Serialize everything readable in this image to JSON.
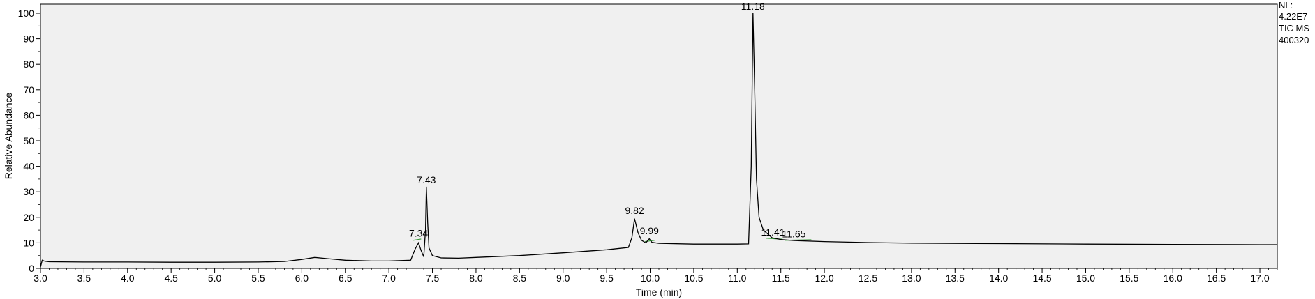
{
  "chart_data": {
    "type": "line",
    "title": "",
    "xlabel": "Time (min)",
    "ylabel": "Relative Abundance",
    "xlim": [
      3.0,
      17.2
    ],
    "ylim": [
      0,
      102
    ],
    "x_ticks": [
      "3.0",
      "3.5",
      "4.0",
      "4.5",
      "5.0",
      "5.5",
      "6.0",
      "6.5",
      "7.0",
      "7.5",
      "8.0",
      "8.5",
      "9.0",
      "9.5",
      "10.0",
      "10.5",
      "11.0",
      "11.5",
      "12.0",
      "12.5",
      "13.0",
      "13.5",
      "14.0",
      "14.5",
      "15.0",
      "15.5",
      "16.0",
      "16.5",
      "17.0"
    ],
    "y_ticks": [
      "0",
      "10",
      "20",
      "30",
      "40",
      "50",
      "60",
      "70",
      "80",
      "90",
      "100"
    ],
    "info": [
      "NL:",
      "4.22E7",
      "TIC  MS",
      "400320"
    ],
    "colors": {
      "trace": "#000000",
      "baseline": "#3a9a3a",
      "plot_bg": "#f0f0f0"
    },
    "peaks": [
      {
        "label": "7.34",
        "x": 7.34,
        "y": 11
      },
      {
        "label": "7.43",
        "x": 7.43,
        "y": 32
      },
      {
        "label": "9.82",
        "x": 9.82,
        "y": 20
      },
      {
        "label": "9.99",
        "x": 9.99,
        "y": 12
      },
      {
        "label": "11.18",
        "x": 11.18,
        "y": 100
      },
      {
        "label": "11.41",
        "x": 11.41,
        "y": 11.5
      },
      {
        "label": "11.65",
        "x": 11.65,
        "y": 10.8
      }
    ],
    "series": [
      {
        "points": [
          [
            3.0,
            0.5
          ],
          [
            3.02,
            3.2
          ],
          [
            3.05,
            2.8
          ],
          [
            3.1,
            2.6
          ],
          [
            3.5,
            2.5
          ],
          [
            4.0,
            2.5
          ],
          [
            4.5,
            2.4
          ],
          [
            5.0,
            2.4
          ],
          [
            5.5,
            2.5
          ],
          [
            5.8,
            2.7
          ],
          [
            6.0,
            3.5
          ],
          [
            6.15,
            4.3
          ],
          [
            6.3,
            3.8
          ],
          [
            6.5,
            3.2
          ],
          [
            6.8,
            2.9
          ],
          [
            7.0,
            2.9
          ],
          [
            7.25,
            3.2
          ],
          [
            7.3,
            7.5
          ],
          [
            7.34,
            10
          ],
          [
            7.37,
            7
          ],
          [
            7.4,
            4.5
          ],
          [
            7.42,
            15
          ],
          [
            7.43,
            32
          ],
          [
            7.445,
            18
          ],
          [
            7.46,
            8
          ],
          [
            7.5,
            5
          ],
          [
            7.6,
            4.1
          ],
          [
            7.8,
            4.0
          ],
          [
            8.0,
            4.3
          ],
          [
            8.5,
            5.0
          ],
          [
            9.0,
            6.1
          ],
          [
            9.5,
            7.3
          ],
          [
            9.75,
            8.2
          ],
          [
            9.79,
            12
          ],
          [
            9.82,
            19.5
          ],
          [
            9.86,
            14
          ],
          [
            9.9,
            11
          ],
          [
            9.95,
            10
          ],
          [
            9.99,
            11.6
          ],
          [
            10.02,
            10.2
          ],
          [
            10.1,
            9.8
          ],
          [
            10.5,
            9.5
          ],
          [
            11.0,
            9.5
          ],
          [
            11.13,
            9.6
          ],
          [
            11.16,
            40
          ],
          [
            11.18,
            100
          ],
          [
            11.2,
            70
          ],
          [
            11.22,
            35
          ],
          [
            11.25,
            20
          ],
          [
            11.3,
            15
          ],
          [
            11.4,
            12
          ],
          [
            11.5,
            11.3
          ],
          [
            11.65,
            10.9
          ],
          [
            12.0,
            10.5
          ],
          [
            12.5,
            10.1
          ],
          [
            13.0,
            9.9
          ],
          [
            14.0,
            9.7
          ],
          [
            15.0,
            9.5
          ],
          [
            16.0,
            9.4
          ],
          [
            17.0,
            9.3
          ],
          [
            17.2,
            9.3
          ]
        ]
      }
    ]
  }
}
